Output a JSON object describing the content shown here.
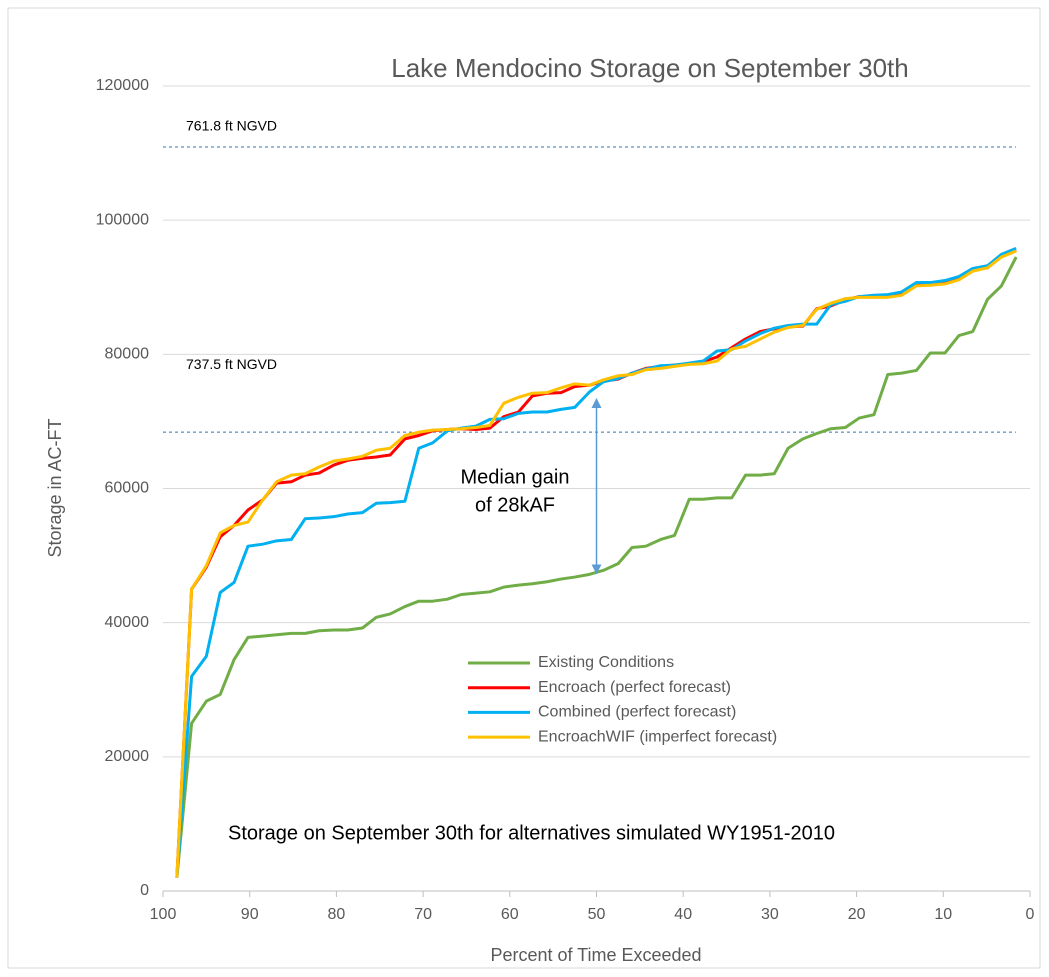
{
  "chart_data": {
    "type": "line",
    "title": "Lake Mendocino Storage on September 30th",
    "xlabel": "Percent of Time Exceeded",
    "ylabel": "Storage in AC-FT",
    "xlim": [
      100,
      0
    ],
    "xticks": [
      100,
      90,
      80,
      70,
      60,
      50,
      40,
      30,
      20,
      10,
      0
    ],
    "ylim": [
      0,
      120000
    ],
    "yticks": [
      0,
      20000,
      40000,
      60000,
      80000,
      100000,
      120000
    ],
    "grid": true,
    "legend": "center",
    "x": [
      98.4,
      96.7,
      95,
      93.4,
      91.8,
      90.2,
      88.5,
      86.9,
      85.2,
      83.6,
      82,
      80.3,
      78.7,
      77,
      75.4,
      73.8,
      72.1,
      70.5,
      68.9,
      67.2,
      65.6,
      63.9,
      62.3,
      60.7,
      59,
      57.4,
      55.7,
      54.1,
      52.5,
      50.8,
      49.2,
      47.5,
      45.9,
      44.3,
      42.6,
      41,
      39.3,
      37.7,
      36.1,
      34.4,
      32.8,
      31.1,
      29.5,
      27.9,
      26.2,
      24.6,
      23,
      21.3,
      19.7,
      18,
      16.4,
      14.8,
      13.1,
      11.5,
      9.8,
      8.2,
      6.6,
      4.9,
      3.3,
      1.6
    ],
    "series": [
      {
        "name": "Existing Conditions",
        "color": "#70ad47",
        "values": [
          2000,
          25000,
          28300,
          29300,
          34500,
          37800,
          38000,
          38200,
          38400,
          38400,
          38800,
          38900,
          38900,
          39200,
          40800,
          41300,
          42400,
          43200,
          43200,
          43500,
          44200,
          44400,
          44600,
          45300,
          45600,
          45800,
          46100,
          46500,
          46800,
          47200,
          47800,
          48800,
          51200,
          51400,
          52400,
          53000,
          58400,
          58400,
          58600,
          58600,
          62000,
          62000,
          62200,
          66000,
          67400,
          68200,
          68900,
          69100,
          70500,
          71000,
          77000,
          77200,
          77600,
          80200,
          80200,
          82800,
          83400,
          88200,
          90200,
          94500
        ]
      },
      {
        "name": "Encroach (perfect forecast)",
        "color": "#ff0000",
        "values": [
          2000,
          45000,
          48300,
          52800,
          54500,
          56800,
          58300,
          60800,
          61000,
          62000,
          62300,
          63500,
          64200,
          64500,
          64700,
          65000,
          67400,
          67900,
          68600,
          68800,
          68900,
          68800,
          69000,
          70700,
          71400,
          73800,
          74200,
          74300,
          75200,
          75400,
          76000,
          76300,
          77200,
          77900,
          78200,
          78400,
          78600,
          78900,
          79600,
          81000,
          82300,
          83400,
          83800,
          84100,
          84200,
          86800,
          87200,
          88100,
          88600,
          88600,
          88600,
          89000,
          90300,
          90500,
          90600,
          91200,
          92600,
          92900,
          94700,
          95500
        ]
      },
      {
        "name": "Combined (perfect forecast)",
        "color": "#00b0f0",
        "values": [
          2000,
          32000,
          35000,
          44500,
          46000,
          51400,
          51700,
          52200,
          52400,
          55500,
          55600,
          55800,
          56200,
          56400,
          57800,
          57900,
          58100,
          66000,
          66800,
          68600,
          69000,
          69300,
          70300,
          70400,
          71200,
          71400,
          71400,
          71800,
          72100,
          74400,
          75900,
          76400,
          77200,
          77800,
          78300,
          78400,
          78700,
          79000,
          80500,
          80700,
          82000,
          83100,
          83900,
          84300,
          84500,
          84500,
          87400,
          87900,
          88600,
          88800,
          88900,
          89300,
          90700,
          90700,
          91000,
          91600,
          92800,
          93200,
          94900,
          95800
        ]
      },
      {
        "name": "EncroachWIF (imperfect forecast)",
        "color": "#ffc000",
        "values": [
          2000,
          45000,
          48500,
          53400,
          54500,
          55000,
          58300,
          61000,
          62000,
          62200,
          63200,
          64100,
          64400,
          64800,
          65700,
          66000,
          67900,
          68400,
          68700,
          68800,
          68900,
          69100,
          69400,
          72700,
          73600,
          74200,
          74300,
          75000,
          75600,
          75400,
          76200,
          76800,
          77000,
          77700,
          77900,
          78200,
          78500,
          78600,
          79000,
          80800,
          81200,
          82300,
          83300,
          84000,
          84300,
          86700,
          87600,
          88300,
          88500,
          88500,
          88500,
          88800,
          90200,
          90300,
          90500,
          91100,
          92400,
          92900,
          94500,
          95400
        ]
      }
    ],
    "reference_lines": [
      {
        "label": "761.8 ft NGVD",
        "value": 110900,
        "color": "#2e75b6"
      },
      {
        "label": "737.5 ft NGVD",
        "value": 68400,
        "color": "#2e75b6"
      }
    ],
    "annotation": {
      "lines": [
        "Median gain",
        "of 28kAF"
      ],
      "x": 50,
      "y_from": 47200,
      "y_to": 73500,
      "color": "#5b9bd5"
    },
    "footnote": "Storage on September 30th for alternatives simulated WY1951-2010"
  }
}
